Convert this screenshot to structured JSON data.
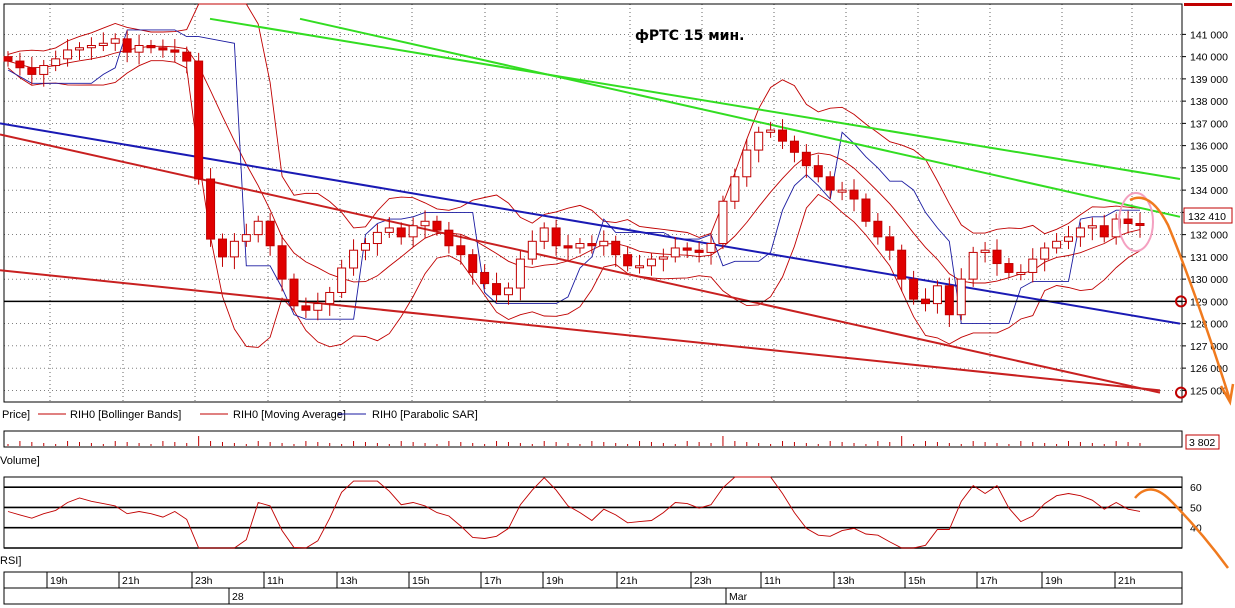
{
  "chart_data": [
    {
      "type": "candlestick",
      "title": "фРТС   15 мин.",
      "instrument": "RIH0",
      "last_price_label": "132 410",
      "y_ticks": [
        "125 000",
        "126 000",
        "127 000",
        "128 000",
        "129 000",
        "130 000",
        "131 000",
        "132 000",
        "133 000",
        "134 000",
        "135 000",
        "136 000",
        "137 000",
        "138 000",
        "139 000",
        "140 000",
        "141 000"
      ],
      "ylim": [
        124500,
        141700
      ],
      "legend": [
        "Price]",
        "RIH0 [Bollinger Bands]",
        "RIH0 [Moving Average]",
        "RIH0 [Parabolic SAR]"
      ],
      "colors": {
        "up": "#ffffff",
        "down": "#e00000",
        "candle_border": "#c00000",
        "bollinger": "#c00000",
        "moving_average": "#c00000",
        "parabolic_sar": "#1a1aa0",
        "channel_red": "#c82020",
        "channel_blue": "#1a1ab4",
        "channel_green": "#33dd22",
        "level": "#000000",
        "forecast": "#f07a1e",
        "highlight": "#f4a0c0"
      },
      "close_series_approx": [
        139800,
        139500,
        139200,
        139600,
        139900,
        140300,
        140400,
        140500,
        140600,
        140800,
        140200,
        140500,
        140400,
        140300,
        140200,
        139800,
        134500,
        131800,
        131000,
        131700,
        132000,
        132600,
        131500,
        130000,
        128800,
        128600,
        128900,
        129400,
        130500,
        131300,
        131600,
        132100,
        132300,
        131900,
        132400,
        132600,
        132200,
        131500,
        131100,
        130300,
        129800,
        129300,
        129600,
        130900,
        131700,
        132300,
        131500,
        131400,
        131600,
        131500,
        131700,
        131100,
        130600,
        130600,
        130900,
        131000,
        131400,
        131300,
        131200,
        131600,
        133500,
        134600,
        135800,
        136600,
        136700,
        136200,
        135700,
        135100,
        134600,
        134000,
        134000,
        133600,
        132600,
        131900,
        131300,
        130000,
        129100,
        128900,
        129700,
        128400,
        130000,
        131200,
        131300,
        130700,
        130300,
        130300,
        130900,
        131400,
        131700,
        131900,
        132300,
        132400,
        131900,
        132700,
        132500,
        132410
      ],
      "levels": [
        129000
      ],
      "trend_lines": [
        {
          "color": "red",
          "from": [
            0,
            136500
          ],
          "to": [
            1160,
            124900
          ]
        },
        {
          "color": "red",
          "from": [
            0,
            130400
          ],
          "to": [
            1160,
            125000
          ]
        },
        {
          "color": "blue",
          "from": [
            0,
            137000
          ],
          "to": [
            1180,
            128000
          ]
        },
        {
          "color": "green",
          "from": [
            210,
            141700
          ],
          "to": [
            1180,
            134500
          ]
        },
        {
          "color": "green",
          "from": [
            300,
            141700
          ],
          "to": [
            1180,
            132800
          ]
        }
      ]
    },
    {
      "type": "bar",
      "title": "Volume]",
      "last_value_label": "3 802"
    },
    {
      "type": "line",
      "title": "RSI]",
      "y_ticks": [
        "40",
        "50",
        "60"
      ],
      "ylim": [
        30,
        65
      ],
      "levels": [
        30,
        40,
        50,
        60
      ]
    }
  ],
  "x_axis": {
    "time_labels": [
      "19h",
      "21h",
      "23h",
      "11h",
      "13h",
      "15h",
      "17h",
      "19h",
      "21h",
      "23h",
      "11h",
      "13h",
      "15h",
      "17h",
      "19h",
      "21h"
    ],
    "date_labels": [
      "28",
      "Mar"
    ]
  }
}
